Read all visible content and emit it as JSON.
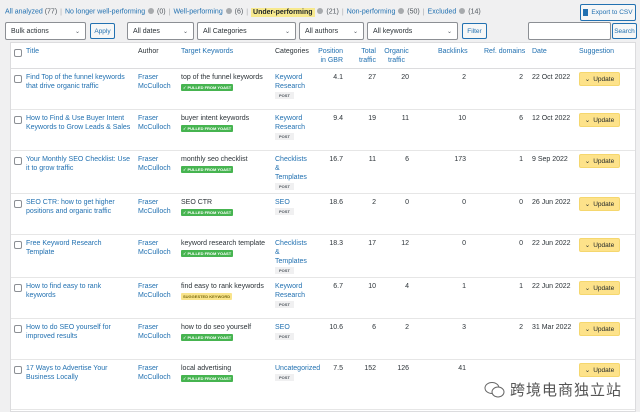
{
  "views": [
    {
      "label": "All analyzed",
      "count": "(77)",
      "current": false,
      "help": false
    },
    {
      "label": "No longer well-performing",
      "count": "(0)",
      "current": false,
      "help": true
    },
    {
      "label": "Well-performing",
      "count": "(6)",
      "current": false,
      "help": true
    },
    {
      "label": "Under-performing",
      "count": "(21)",
      "current": true,
      "help": true
    },
    {
      "label": "Non-performing",
      "count": "(50)",
      "current": false,
      "help": true
    },
    {
      "label": "Excluded",
      "count": "(14)",
      "current": false,
      "help": true
    }
  ],
  "export_label": "Export to CSV",
  "filters": {
    "bulk": "Bulk actions",
    "apply": "Apply",
    "dates": "All dates",
    "categories": "All Categories",
    "authors": "All authors",
    "keywords": "All keywords",
    "filter": "Filter",
    "search_value": "",
    "search": "Search"
  },
  "columns": {
    "title": "Title",
    "author": "Author",
    "keywords": "Target Keywords",
    "categories": "Categories",
    "position": "Position in GBR",
    "total": "Total traffic",
    "organic": "Organic traffic",
    "backlinks": "Backlinks",
    "ref": "Ref. domains",
    "date": "Date",
    "suggestion": "Suggestion"
  },
  "rows": [
    {
      "title": "Find Top of the funnel keywords that drive organic traffic",
      "author": "Fraser McCulloch",
      "keyword": "top of the funnel keywords",
      "badge": "✓ PULLED FROM YOAST",
      "badge_type": "yoast",
      "category": "Keyword Research",
      "type": "POST",
      "position": "4.1",
      "total": "27",
      "organic": "20",
      "backlinks": "2",
      "ref": "2",
      "date": "22 Oct 2022",
      "suggestion": "Update"
    },
    {
      "title": "How to Find & Use Buyer Intent Keywords to Grow Leads & Sales",
      "author": "Fraser McCulloch",
      "keyword": "buyer intent keywords",
      "badge": "✓ PULLED FROM YOAST",
      "badge_type": "yoast",
      "category": "Keyword Research",
      "type": "POST",
      "position": "9.4",
      "total": "19",
      "organic": "11",
      "backlinks": "10",
      "ref": "6",
      "date": "12 Oct 2022",
      "suggestion": "Update"
    },
    {
      "title": "Your Monthly SEO Checklist: Use it to grow traffic",
      "author": "Fraser McCulloch",
      "keyword": "monthly seo checklist",
      "badge": "✓ PULLED FROM YOAST",
      "badge_type": "yoast",
      "category": "Checklists & Templates",
      "type": "POST",
      "position": "16.7",
      "total": "11",
      "organic": "6",
      "backlinks": "173",
      "ref": "1",
      "date": "9 Sep 2022",
      "suggestion": "Update"
    },
    {
      "title": "SEO CTR: how to get higher positions and organic traffic",
      "author": "Fraser McCulloch",
      "keyword": "SEO CTR",
      "badge": "✓ PULLED FROM YOAST",
      "badge_type": "yoast",
      "category": "SEO",
      "type": "POST",
      "position": "18.6",
      "total": "2",
      "organic": "0",
      "backlinks": "0",
      "ref": "0",
      "date": "26 Jun 2022",
      "suggestion": "Update"
    },
    {
      "title": "Free Keyword Research Template",
      "author": "Fraser McCulloch",
      "keyword": "keyword research template",
      "badge": "✓ PULLED FROM YOAST",
      "badge_type": "yoast",
      "category": "Checklists & Templates",
      "type": "POST",
      "position": "18.3",
      "total": "17",
      "organic": "12",
      "backlinks": "0",
      "ref": "0",
      "date": "22 Jun 2022",
      "suggestion": "Update"
    },
    {
      "title": "How to find easy to rank keywords",
      "author": "Fraser McCulloch",
      "keyword": "find easy to rank keywords",
      "badge": "SUGGESTED KEYWORD",
      "badge_type": "sugg",
      "category": "Keyword Research",
      "type": "POST",
      "position": "6.7",
      "total": "10",
      "organic": "4",
      "backlinks": "1",
      "ref": "1",
      "date": "22 Jun 2022",
      "suggestion": "Update"
    },
    {
      "title": "How to do SEO yourself for improved results",
      "author": "Fraser McCulloch",
      "keyword": "how to do seo yourself",
      "badge": "✓ PULLED FROM YOAST",
      "badge_type": "yoast",
      "category": "SEO",
      "type": "POST",
      "position": "10.6",
      "total": "6",
      "organic": "2",
      "backlinks": "3",
      "ref": "2",
      "date": "31 Mar 2022",
      "suggestion": "Update"
    },
    {
      "title": "17 Ways to Advertise Your Business Locally",
      "author": "Fraser McCulloch",
      "keyword": "local advertising",
      "badge": "✓ PULLED FROM YOAST",
      "badge_type": "yoast",
      "category": "Uncategorized",
      "type": "POST",
      "position": "7.5",
      "total": "152",
      "organic": "126",
      "backlinks": "41",
      "ref": "",
      "date": "",
      "suggestion": "Update"
    }
  ],
  "watermark": "跨境电商独立站",
  "colors": {
    "link": "#2271b1",
    "highlight": "#f7e98e",
    "update": "#fde28a",
    "yoast": "#46b450"
  }
}
